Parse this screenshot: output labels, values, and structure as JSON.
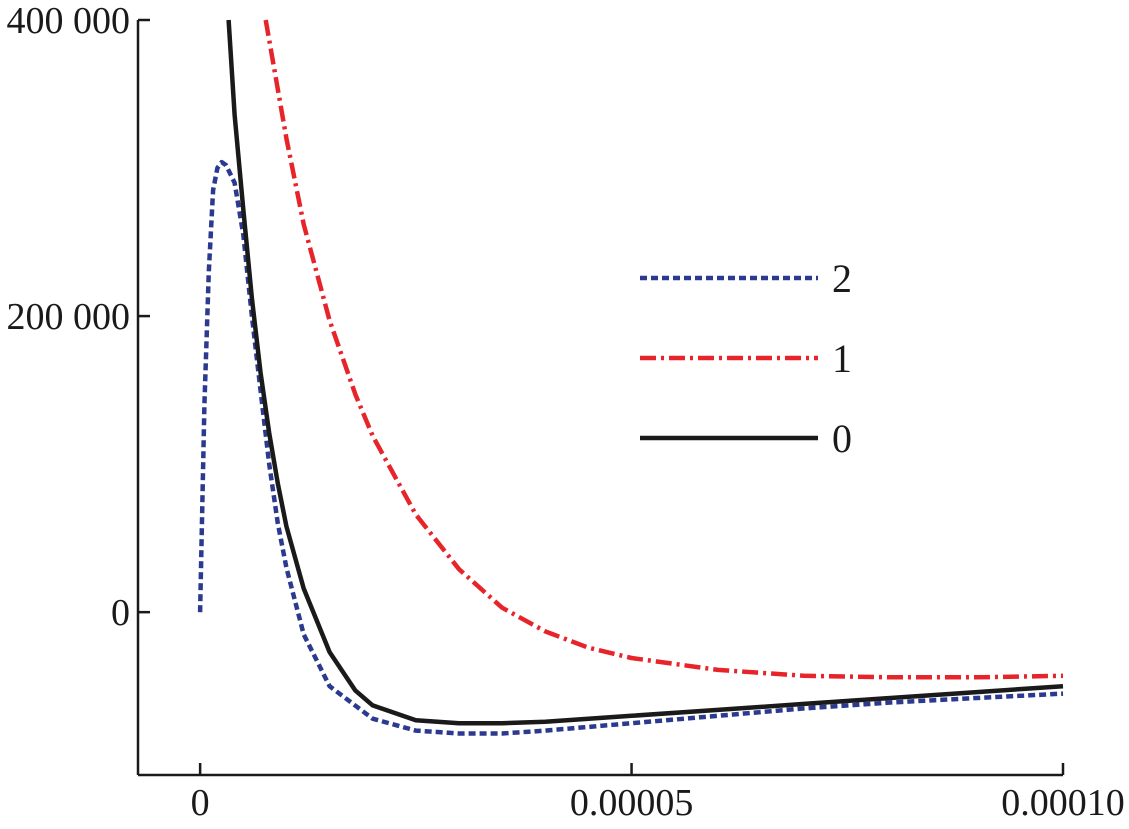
{
  "chart_data": {
    "type": "line",
    "xlim": [
      -7.2e-06,
      0.0001
    ],
    "ylim": [
      -110000,
      400000
    ],
    "x_ticks": [
      {
        "value": 0,
        "label": "0"
      },
      {
        "value": 5e-05,
        "label": "0.00005"
      },
      {
        "value": 0.0001,
        "label": "0.00010"
      }
    ],
    "y_ticks": [
      {
        "value": 0,
        "label": "0"
      },
      {
        "value": 200000,
        "label": "200 000"
      },
      {
        "value": 400000,
        "label": "400 000"
      }
    ],
    "legend_position": "right",
    "series": [
      {
        "name": "2",
        "color": "#2b3990",
        "dash": "dotted",
        "points": [
          [
            0,
            0
          ],
          [
            5e-07,
            140000
          ],
          [
            1e-06,
            230000
          ],
          [
            1.5e-06,
            285000
          ],
          [
            2e-06,
            300000
          ],
          [
            2.5e-06,
            304000
          ],
          [
            3e-06,
            302000
          ],
          [
            4e-06,
            290000
          ],
          [
            5e-06,
            255000
          ],
          [
            6e-06,
            200000
          ],
          [
            7e-06,
            150000
          ],
          [
            8e-06,
            100000
          ],
          [
            9e-06,
            60000
          ],
          [
            1e-05,
            30000
          ],
          [
            1.2e-05,
            -15000
          ],
          [
            1.5e-05,
            -50000
          ],
          [
            2e-05,
            -72000
          ],
          [
            2.5e-05,
            -80000
          ],
          [
            3e-05,
            -82000
          ],
          [
            3.5e-05,
            -82000
          ],
          [
            4e-05,
            -80000
          ],
          [
            5e-05,
            -75000
          ],
          [
            6e-05,
            -70000
          ],
          [
            7e-05,
            -65000
          ],
          [
            8e-05,
            -61000
          ],
          [
            9e-05,
            -58000
          ],
          [
            0.0001,
            -55000
          ]
        ]
      },
      {
        "name": "1",
        "color": "#e8242b",
        "dash": "dashdot",
        "points": [
          [
            7.6e-06,
            400000
          ],
          [
            1e-05,
            320000
          ],
          [
            1.2e-05,
            262000
          ],
          [
            1.5e-05,
            197000
          ],
          [
            1.8e-05,
            147000
          ],
          [
            2e-05,
            119000
          ],
          [
            2.5e-05,
            66000
          ],
          [
            3e-05,
            29000
          ],
          [
            3.5e-05,
            3000
          ],
          [
            4e-05,
            -13000
          ],
          [
            4.5e-05,
            -24000
          ],
          [
            5e-05,
            -31000
          ],
          [
            6e-05,
            -39000
          ],
          [
            7e-05,
            -43000
          ],
          [
            8e-05,
            -44000
          ],
          [
            9e-05,
            -44000
          ],
          [
            0.0001,
            -43000
          ]
        ]
      },
      {
        "name": "0",
        "color": "#1a1a1a",
        "dash": "solid",
        "points": [
          [
            3.3e-06,
            400000
          ],
          [
            4e-06,
            336000
          ],
          [
            5e-06,
            272000
          ],
          [
            6e-06,
            212000
          ],
          [
            7e-06,
            162000
          ],
          [
            8e-06,
            121000
          ],
          [
            9e-06,
            87000
          ],
          [
            1e-05,
            58000
          ],
          [
            1.2e-05,
            16000
          ],
          [
            1.5e-05,
            -27000
          ],
          [
            1.8e-05,
            -53000
          ],
          [
            2e-05,
            -63000
          ],
          [
            2.5e-05,
            -73000
          ],
          [
            3e-05,
            -75000
          ],
          [
            3.5e-05,
            -75000
          ],
          [
            4e-05,
            -74000
          ],
          [
            5e-05,
            -70000
          ],
          [
            6e-05,
            -66000
          ],
          [
            7e-05,
            -62000
          ],
          [
            8e-05,
            -58000
          ],
          [
            9e-05,
            -54000
          ],
          [
            0.0001,
            -50000
          ]
        ]
      }
    ]
  }
}
